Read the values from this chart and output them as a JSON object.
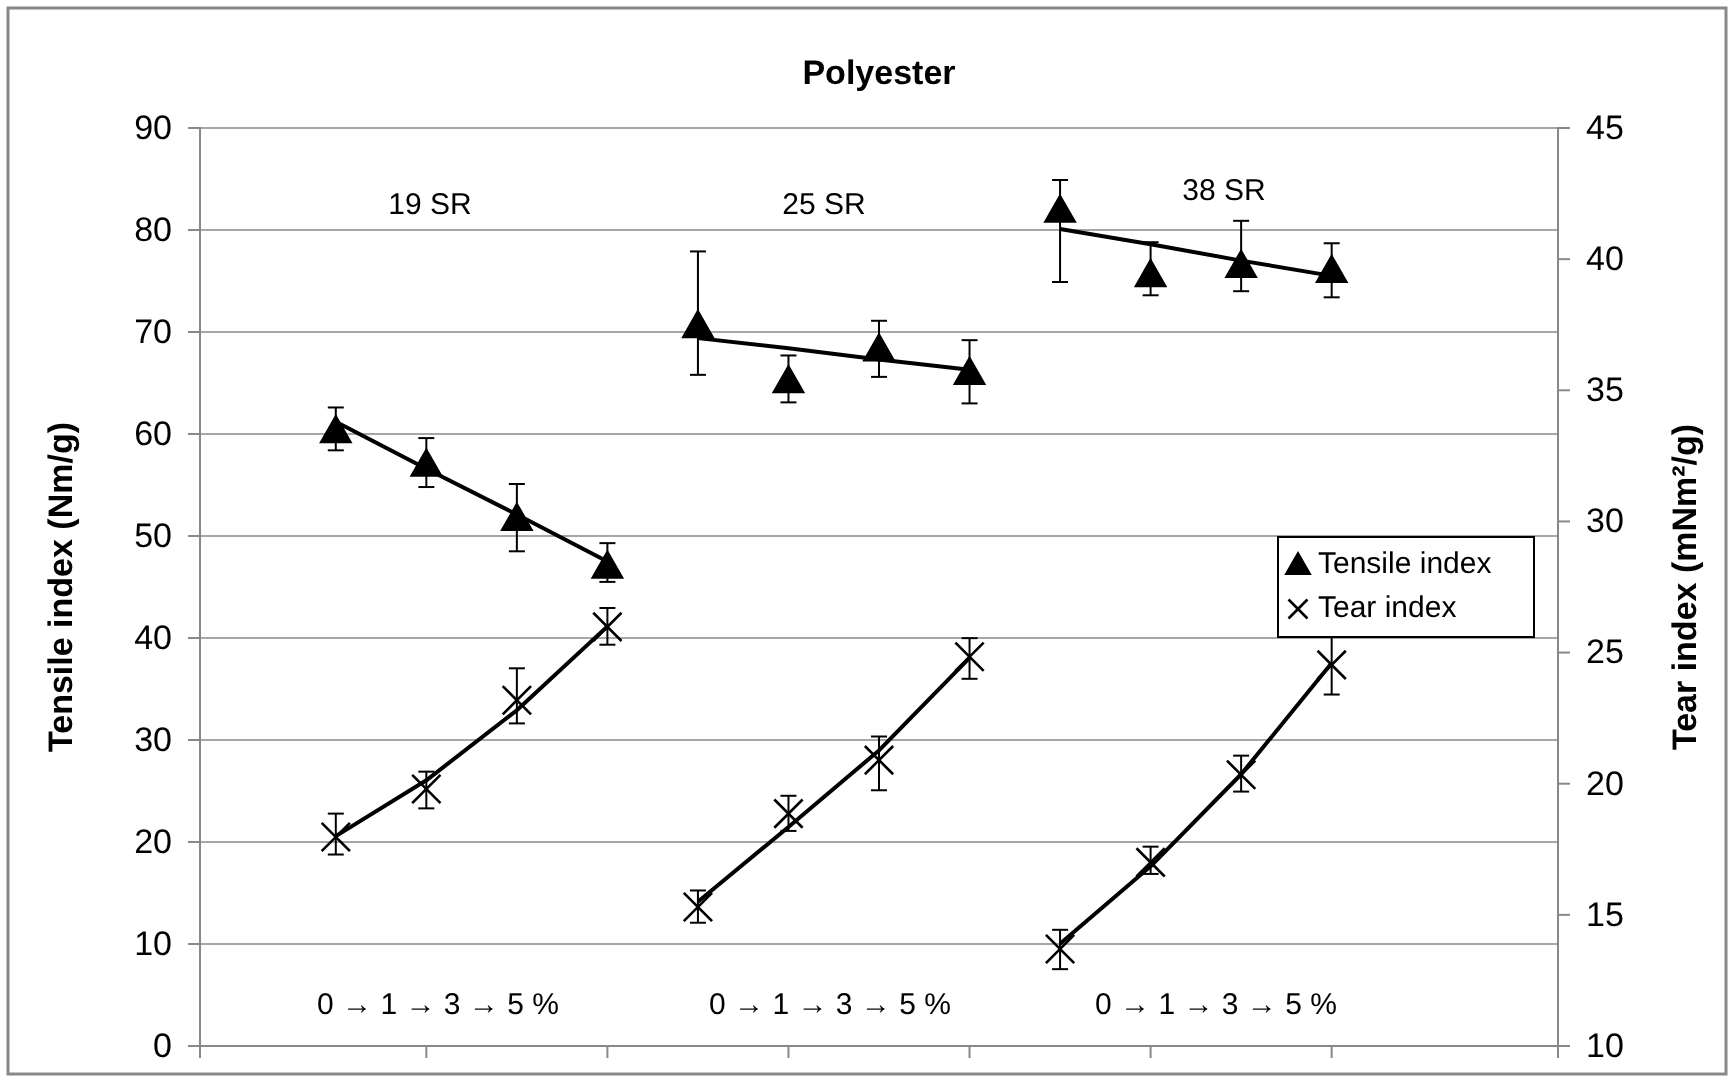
{
  "chart_data": {
    "type": "scatter",
    "title": "Polyester",
    "ylabel": "Tensile index (Nm/g)",
    "y2label": "Tear index (mNm²/g)",
    "categories": [
      null,
      null,
      null,
      null,
      null,
      null,
      null,
      null,
      null,
      null,
      null,
      null,
      null,
      null,
      null
    ],
    "ylim": [
      0,
      90
    ],
    "yticks": [
      0,
      10,
      20,
      30,
      40,
      50,
      60,
      70,
      80,
      90
    ],
    "y2lim": [
      10,
      45
    ],
    "y2ticks": [
      10,
      15,
      20,
      25,
      30,
      35,
      40,
      45
    ],
    "grid": "y",
    "legend": "right",
    "series": [
      {
        "name": "Tensile index",
        "marker": "triangle",
        "color": "#000000",
        "values": [
          null,
          60.3,
          57.0,
          51.7,
          47.0,
          70.6,
          65.2,
          68.3,
          66.0,
          81.9,
          75.6,
          76.5,
          76.0,
          null,
          null
        ],
        "errors": [
          null,
          [
            58.4,
            62.6
          ],
          [
            54.8,
            59.6
          ],
          [
            48.5,
            55.1
          ],
          [
            45.5,
            49.3
          ],
          [
            65.8,
            77.9
          ],
          [
            63.1,
            67.7
          ],
          [
            65.6,
            71.1
          ],
          [
            63.0,
            69.2
          ],
          [
            74.9,
            84.9
          ],
          [
            73.6,
            78.8
          ],
          [
            74.0,
            80.9
          ],
          [
            73.4,
            78.7
          ],
          null,
          null
        ]
      },
      {
        "name": "Tear index",
        "marker": "cross",
        "axis": "y2",
        "color": "#000000",
        "values": [
          null,
          17.97,
          19.8,
          23.18,
          25.98,
          15.3,
          18.86,
          20.9,
          24.84,
          13.7,
          17.0,
          20.34,
          24.53,
          null,
          null
        ],
        "errors": [
          null,
          [
            17.3,
            18.86
          ],
          [
            19.06,
            20.46
          ],
          [
            22.3,
            24.4
          ],
          [
            25.3,
            26.7
          ],
          [
            14.7,
            15.93
          ],
          [
            18.2,
            19.54
          ],
          [
            19.75,
            21.8
          ],
          [
            24.0,
            25.55
          ],
          [
            12.93,
            14.43
          ],
          [
            16.56,
            17.6
          ],
          [
            19.7,
            21.07
          ],
          [
            23.4,
            25.7
          ],
          null,
          null
        ]
      },
      {
        "type": "line",
        "color": "#000000",
        "values": [
          null,
          61.2,
          56.6,
          52.1,
          47.5,
          null,
          null,
          null,
          null,
          null,
          null,
          null,
          null,
          null,
          null
        ]
      },
      {
        "type": "line",
        "color": "#000000",
        "values": [
          null,
          null,
          null,
          null,
          null,
          69.4,
          68.4,
          67.3,
          66.3,
          null,
          null,
          null,
          null,
          null,
          null
        ]
      },
      {
        "type": "line",
        "color": "#000000",
        "values": [
          null,
          null,
          null,
          null,
          null,
          null,
          null,
          null,
          null,
          80.1,
          78.6,
          77.0,
          75.5,
          null,
          null
        ]
      },
      {
        "type": "line",
        "axis": "y2",
        "color": "#000000",
        "values": [
          null,
          18.0,
          20.13,
          22.8,
          26.0,
          null,
          null,
          null,
          null,
          null,
          null,
          null,
          null,
          null,
          null
        ]
      },
      {
        "type": "line",
        "axis": "y2",
        "color": "#000000",
        "values": [
          null,
          null,
          null,
          null,
          null,
          15.5,
          18.35,
          21.27,
          24.8,
          null,
          null,
          null,
          null,
          null,
          null
        ]
      },
      {
        "type": "line",
        "axis": "y2",
        "color": "#000000",
        "values": [
          null,
          null,
          null,
          null,
          null,
          null,
          null,
          null,
          null,
          13.9,
          16.85,
          20.36,
          24.6,
          null,
          null
        ]
      }
    ],
    "annotations": [
      "19 SR",
      "25 SR",
      "38 SR",
      "0 → 1 → 3 → 5 %",
      "0 → 1 → 3 → 5 %",
      "0 → 1 → 3 → 5 %"
    ]
  }
}
